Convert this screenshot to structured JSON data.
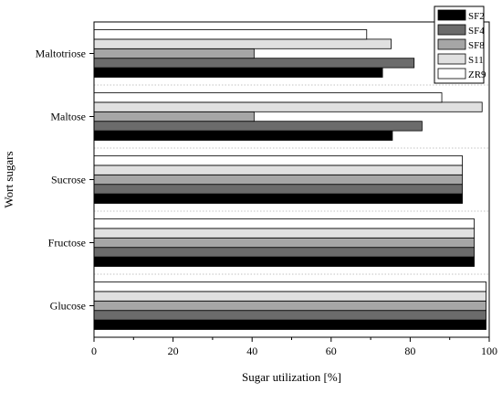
{
  "chart_data": {
    "type": "bar",
    "orientation": "horizontal",
    "categories": [
      "Maltotriose",
      "Maltose",
      "Sucrose",
      "Fructose",
      "Glucose"
    ],
    "series": [
      {
        "name": "SF2",
        "color": "#000000",
        "values": [
          73,
          75.5,
          93.2,
          96.2,
          99.2
        ]
      },
      {
        "name": "SF4",
        "color": "#6b6b6b",
        "values": [
          81,
          83,
          93.2,
          96.2,
          99.2
        ]
      },
      {
        "name": "SF8",
        "color": "#a6a6a6",
        "values": [
          40.5,
          40.5,
          93.2,
          96.2,
          99.2
        ]
      },
      {
        "name": "S11",
        "color": "#e0e0e0",
        "values": [
          75.2,
          98.2,
          93.2,
          96.2,
          99.2
        ]
      },
      {
        "name": "ZR9",
        "color": "#ffffff",
        "values": [
          69,
          88,
          93.2,
          96.2,
          99.2
        ]
      }
    ],
    "xlabel": "Sugar utilization [%]",
    "ylabel": "Wort sugars",
    "xlim": [
      0,
      100
    ],
    "xticks": [
      0,
      20,
      40,
      60,
      80,
      100
    ],
    "grid": false,
    "legend_position": "top-right",
    "category_separators": "dotted"
  }
}
